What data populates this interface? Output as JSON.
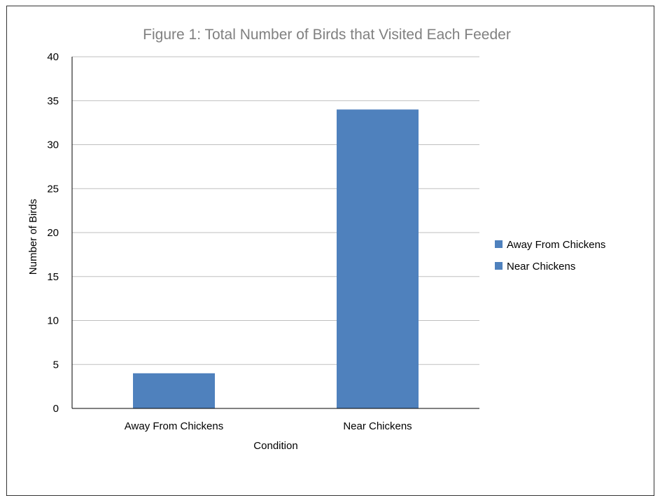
{
  "chart_data": {
    "type": "bar",
    "title": "Figure 1: Total Number of Birds that Visited Each Feeder",
    "xlabel": "Condition",
    "ylabel": "Number of Birds",
    "categories": [
      "Away From Chickens",
      "Near Chickens"
    ],
    "values": [
      4,
      34
    ],
    "ylim": [
      0,
      40
    ],
    "yticks": [
      0,
      5,
      10,
      15,
      20,
      25,
      30,
      35,
      40
    ],
    "grid": true,
    "legend": {
      "placement": "right",
      "entries": [
        "Away From Chickens",
        "Near Chickens"
      ]
    },
    "colors": {
      "bar": "#4f81bd",
      "grid": "#bfbfbf",
      "title": "#808080"
    }
  }
}
